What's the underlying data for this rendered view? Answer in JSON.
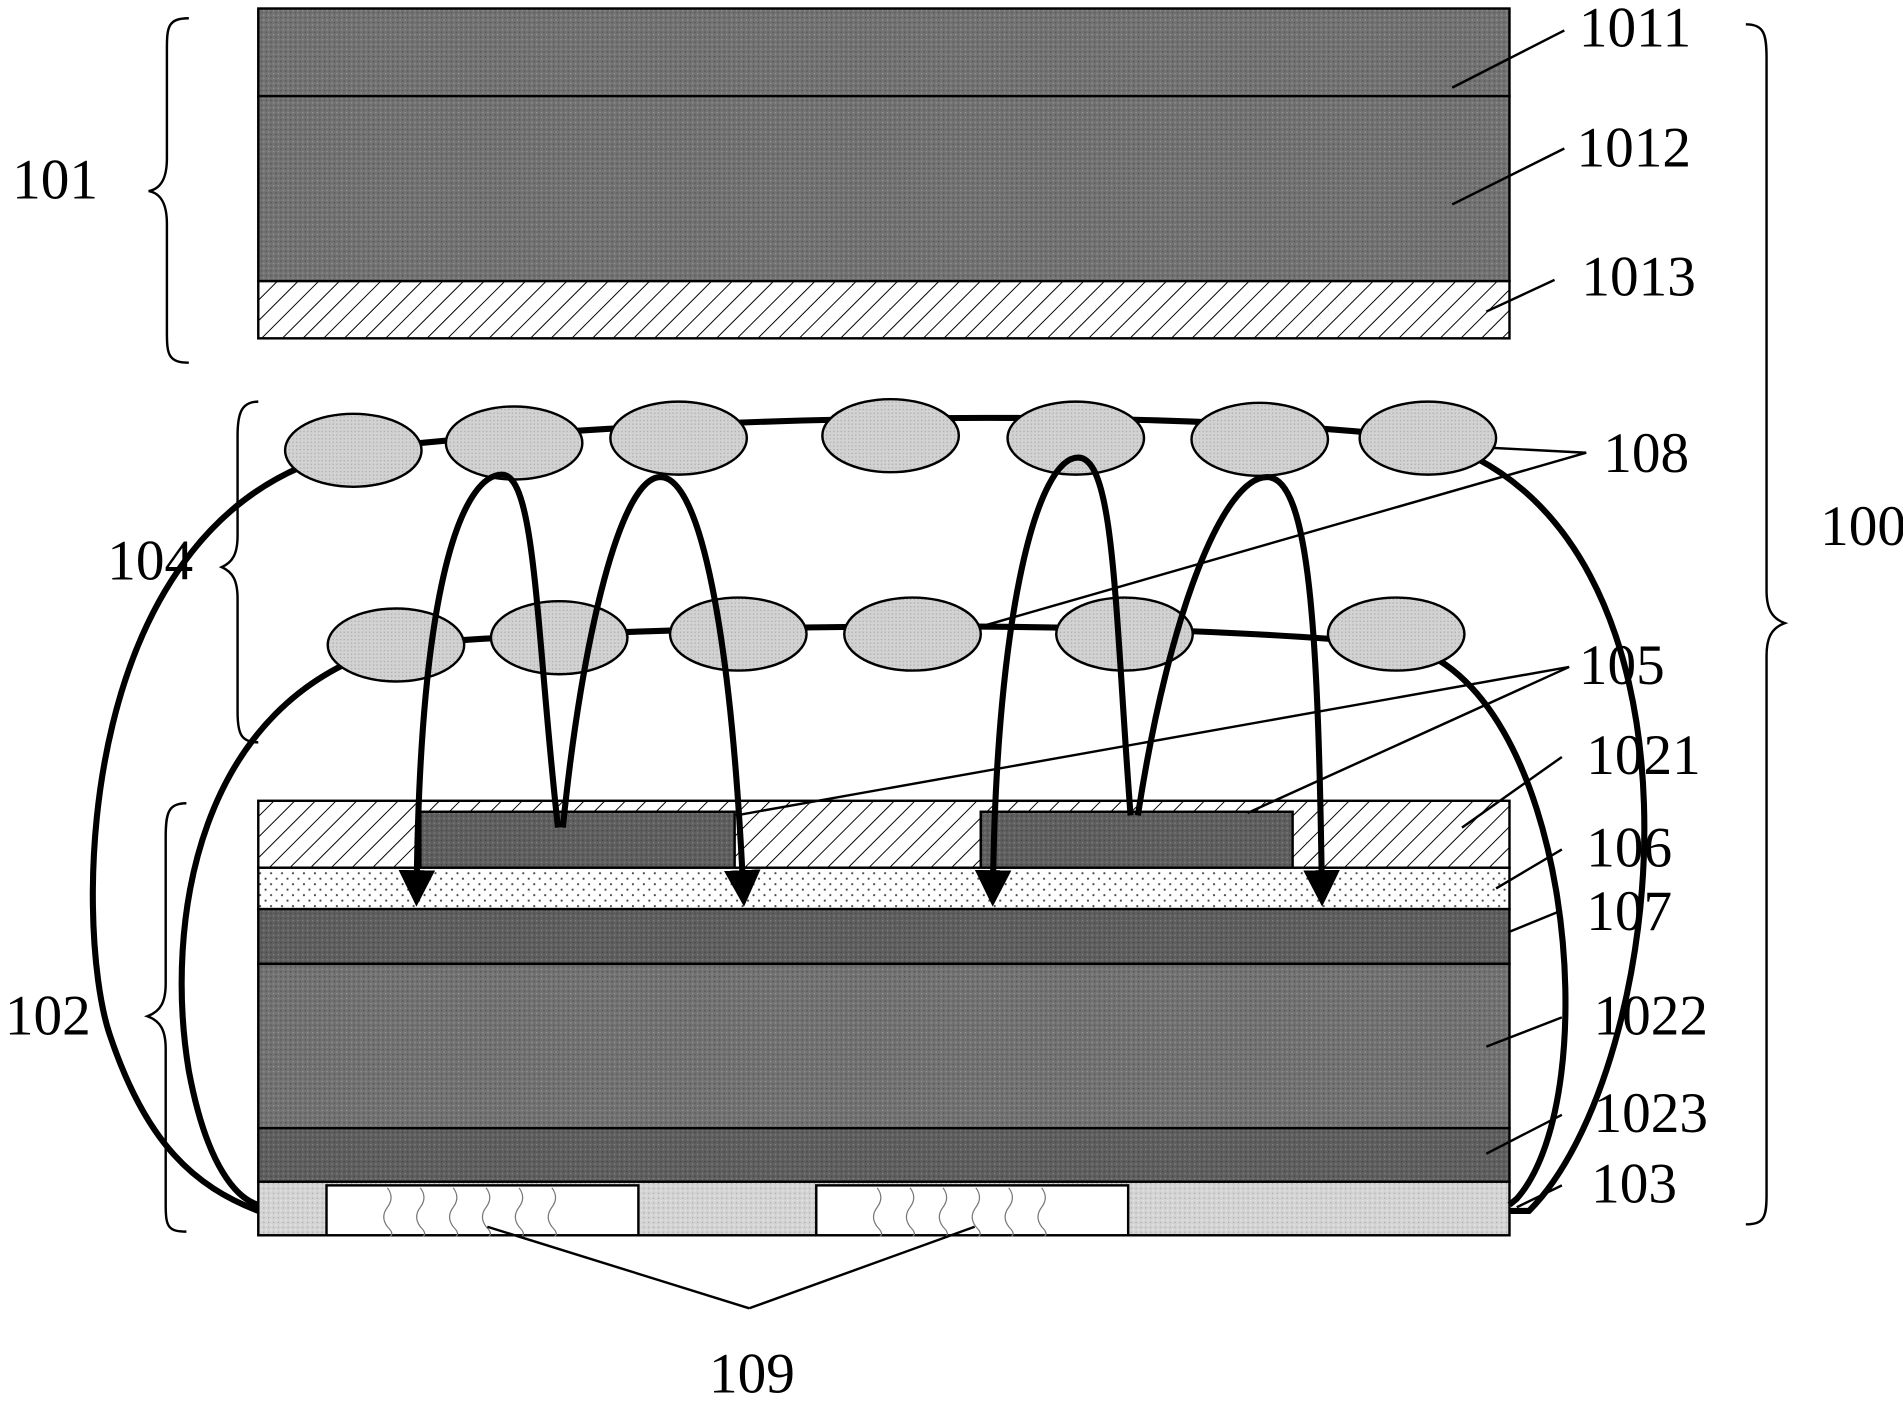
{
  "labels": {
    "l1011": "1011",
    "l1012": "1012",
    "l1013": "1013",
    "l101": "101",
    "l108": "108",
    "l100": "100",
    "l104": "104",
    "l105": "105",
    "l1021": "1021",
    "l106": "106",
    "l107": "107",
    "l102": "102",
    "l1022": "1022",
    "l1023": "1023",
    "l103": "103",
    "l109": "109"
  },
  "colors": {
    "dark_layer": "#6f6f6f",
    "darker_layer": "#5c5c5c",
    "electrode": "#5a5a5a",
    "particle": "#cfcfcf",
    "light_layer": "#d6d6d6"
  }
}
